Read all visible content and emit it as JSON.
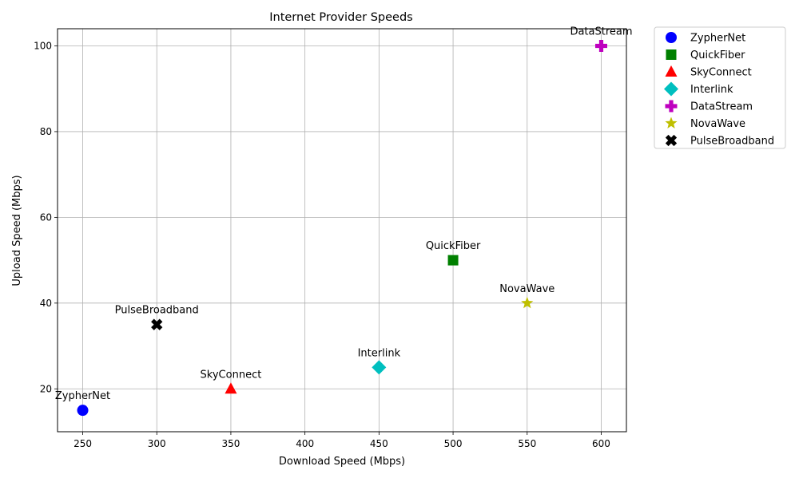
{
  "chart_data": {
    "type": "scatter",
    "title": "Internet Provider Speeds",
    "xlabel": "Download Speed (Mbps)",
    "ylabel": "Upload Speed (Mbps)",
    "xlim": [
      233,
      617
    ],
    "ylim": [
      10,
      104
    ],
    "xticks": [
      250,
      300,
      350,
      400,
      450,
      500,
      550,
      600
    ],
    "yticks": [
      20,
      40,
      60,
      80,
      100
    ],
    "grid": true,
    "legend_position": "outside-top-right",
    "series": [
      {
        "name": "ZypherNet",
        "x": 250,
        "y": 15,
        "marker": "circle",
        "color": "#0000ff"
      },
      {
        "name": "QuickFiber",
        "x": 500,
        "y": 50,
        "marker": "square",
        "color": "#008000"
      },
      {
        "name": "SkyConnect",
        "x": 350,
        "y": 20,
        "marker": "triangle",
        "color": "#ff0000"
      },
      {
        "name": "Interlink",
        "x": 450,
        "y": 25,
        "marker": "diamond",
        "color": "#00bfbf"
      },
      {
        "name": "DataStream",
        "x": 600,
        "y": 100,
        "marker": "plus",
        "color": "#bf00bf"
      },
      {
        "name": "NovaWave",
        "x": 550,
        "y": 40,
        "marker": "star",
        "color": "#bfbf00"
      },
      {
        "name": "PulseBroadband",
        "x": 300,
        "y": 35,
        "marker": "x",
        "color": "#000000"
      }
    ]
  }
}
